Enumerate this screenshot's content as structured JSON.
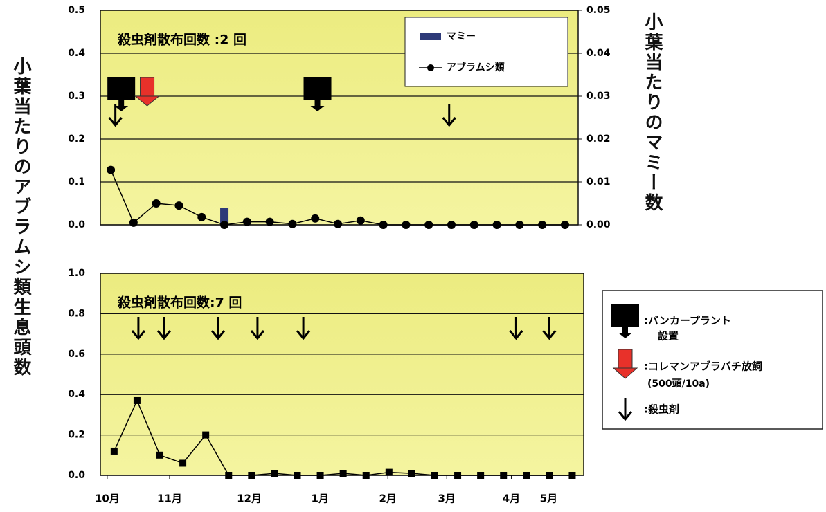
{
  "y_label": "小葉当たりのアブラムシ類生息頭数",
  "y2_label": "小葉当たりのマミー数",
  "legend": {
    "banker_plant": ":バンカープラント",
    "banker_plant_2": "設置",
    "release": ":コレマンアブラバチ放飼",
    "release_note": "(500頭/10a)",
    "insecticide": ":殺虫剤"
  },
  "chart_data": [
    {
      "type": "line",
      "annotation": "殺虫剤散布回数 :2 回",
      "x": [
        1,
        2,
        3,
        4,
        5,
        6,
        7,
        8,
        9,
        10,
        11,
        12,
        13,
        14,
        15,
        16,
        17,
        18,
        19,
        20,
        21
      ],
      "xlim": [
        0.54,
        21.58
      ],
      "ylim": [
        0,
        0.5
      ],
      "yticks": [
        {
          "value": 0,
          "label": "0.0"
        },
        0.1,
        0.2,
        0.3,
        0.4,
        0.5
      ],
      "y2lim": [
        0,
        0.05
      ],
      "y2ticks": [
        {
          "value": 0,
          "label": "0.00"
        },
        0.01,
        0.02,
        0.03,
        0.04,
        0.05
      ],
      "grid": true,
      "legend": "upper right",
      "series": [
        {
          "name": "マミー",
          "type": "bar",
          "axis": "y2",
          "color": "#2e3a78",
          "values": [
            0,
            0,
            0,
            0,
            0,
            0.004,
            0,
            0,
            0,
            0,
            0,
            0,
            0,
            0,
            0,
            0,
            0,
            0,
            0,
            0,
            0
          ]
        },
        {
          "name": "アブラムシ類",
          "color": "#000000",
          "marker": "circle",
          "values": [
            0.128,
            0.005,
            0.05,
            0.045,
            0.018,
            0.0,
            0.007,
            0.007,
            0.002,
            0.015,
            0.002,
            0.01,
            0,
            0,
            0,
            0,
            0,
            0,
            0,
            0,
            0
          ]
        }
      ],
      "events": {
        "banker_plant": [
          1.46,
          10.1
        ],
        "release": [
          2.6
        ],
        "insecticide": [
          1.2,
          15.9
        ]
      }
    },
    {
      "type": "line",
      "annotation": "殺虫剤散布回数:7 回",
      "x": [
        1,
        2,
        3,
        4,
        5,
        6,
        7,
        8,
        9,
        10,
        11,
        12,
        13,
        14,
        15,
        16,
        17,
        18,
        19,
        20,
        21
      ],
      "xlim": [
        0.4,
        21.5
      ],
      "xticks": [
        {
          "value": 0.7,
          "label": "10月"
        },
        {
          "value": 3.42,
          "label": "11月"
        },
        {
          "value": 6.9,
          "label": "12月"
        },
        {
          "value": 9.99,
          "label": "1月"
        },
        {
          "value": 12.95,
          "label": "2月"
        },
        {
          "value": 15.52,
          "label": "3月"
        },
        {
          "value": 18.34,
          "label": "4月"
        },
        {
          "value": 19.97,
          "label": "5月"
        }
      ],
      "ylim": [
        0,
        1
      ],
      "yticks": [
        {
          "value": 0,
          "label": "0.0"
        },
        0.2,
        0.4,
        0.6,
        0.8,
        {
          "value": 1,
          "label": "1.0"
        }
      ],
      "grid": true,
      "series": [
        {
          "color": "#000000",
          "marker": "square",
          "values": [
            0.12,
            0.37,
            0.1,
            0.06,
            0.2,
            0,
            0,
            0.01,
            0,
            0,
            0.01,
            0,
            0.015,
            0.01,
            0,
            0,
            0,
            0,
            0,
            0,
            0
          ]
        }
      ],
      "events": {
        "insecticide": [
          2.06,
          3.18,
          5.54,
          7.26,
          9.26,
          18.55,
          20.0
        ]
      }
    }
  ]
}
